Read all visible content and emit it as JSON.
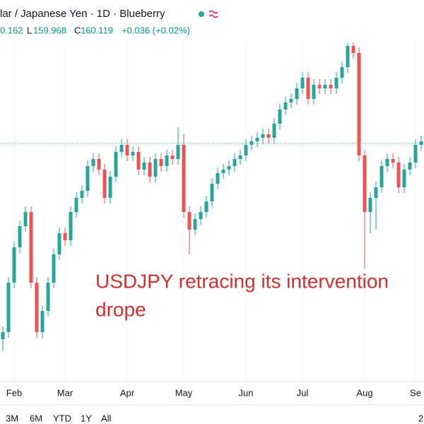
{
  "header": {
    "title": "lar / Japanese Yen · 1D · Blueberry",
    "quote": [
      "0.162",
      "L",
      "159.968",
      "C",
      "160.119",
      "+0.036 (+0.02%)"
    ]
  },
  "chart_data": {
    "type": "candlestick",
    "annotation": [
      "USDJPY retracing its intervention",
      "drope"
    ],
    "categories": [
      null,
      null,
      "Feb",
      null,
      null,
      null,
      null,
      null,
      null,
      null,
      null,
      "Mar",
      null,
      null,
      null,
      null,
      null,
      null,
      null,
      null,
      null,
      null,
      "Apr",
      null,
      null,
      null,
      null,
      null,
      null,
      null,
      null,
      null,
      "May",
      null,
      null,
      null,
      null,
      null,
      null,
      null,
      null,
      null,
      null,
      "Jun",
      null,
      null,
      null,
      null,
      null,
      null,
      null,
      null,
      null,
      "Jul",
      null,
      null,
      null,
      null,
      null,
      null,
      null,
      null,
      null,
      null,
      "Aug",
      null,
      null,
      null,
      null,
      null,
      null,
      null,
      null,
      "Se",
      null
    ],
    "open": [
      141.0,
      141.5,
      145.0,
      147.5,
      149.0,
      150.0,
      145.0,
      141.5,
      143.0,
      145.0,
      147.0,
      148.5,
      148.0,
      150.0,
      151.0,
      151.5,
      153.25,
      153.75,
      153.0,
      151.0,
      152.5,
      154.25,
      154.75,
      154.0,
      154.25,
      153.0,
      153.5,
      152.5,
      153.75,
      153.25,
      154.0,
      153.75,
      154.75,
      150.0,
      148.75,
      149.5,
      150.0,
      150.75,
      152.0,
      152.75,
      153.0,
      153.25,
      153.75,
      154.0,
      154.75,
      155.0,
      155.25,
      155.5,
      155.25,
      156.25,
      157.25,
      157.75,
      158.0,
      158.75,
      159.5,
      158.0,
      159.0,
      158.75,
      159.0,
      158.75,
      159.5,
      160.25,
      161.75,
      161.25,
      154.0,
      150.0,
      151.0,
      151.75,
      153.25,
      153.75,
      153.5,
      151.75,
      153.0,
      153.5,
      154.75
    ],
    "high": [
      141.9,
      145.4,
      147.9,
      149.4,
      150.4,
      150.4,
      145.4,
      143.4,
      145.4,
      147.4,
      148.9,
      148.9,
      150.4,
      151.4,
      151.9,
      153.65,
      154.15,
      154.15,
      153.4,
      152.9,
      154.65,
      155.15,
      155.15,
      154.65,
      154.65,
      153.9,
      153.9,
      154.15,
      154.15,
      154.4,
      154.4,
      156.0,
      155.5,
      150.4,
      149.9,
      150.4,
      151.15,
      152.4,
      153.15,
      153.4,
      153.65,
      154.15,
      154.4,
      155.15,
      155.4,
      155.65,
      155.9,
      155.9,
      156.65,
      157.65,
      158.15,
      158.4,
      159.15,
      159.9,
      159.9,
      159.4,
      159.4,
      159.4,
      159.4,
      159.9,
      160.65,
      161.95,
      162.0,
      161.65,
      154.4,
      151.4,
      152.15,
      153.65,
      154.15,
      154.15,
      153.9,
      153.4,
      153.9,
      155.15,
      155.4
    ],
    "low": [
      140.15,
      141.1,
      144.6,
      147.1,
      148.6,
      144.6,
      141.1,
      141.1,
      142.6,
      144.6,
      146.6,
      147.6,
      147.6,
      149.6,
      150.6,
      151.1,
      152.85,
      152.6,
      150.6,
      150.6,
      152.1,
      153.85,
      153.6,
      153.6,
      152.6,
      152.6,
      152.1,
      152.1,
      152.85,
      152.85,
      153.35,
      153.35,
      149.6,
      147.0,
      148.35,
      149.1,
      149.6,
      150.35,
      151.6,
      152.35,
      152.6,
      152.85,
      153.35,
      153.6,
      154.35,
      154.6,
      154.85,
      154.85,
      154.85,
      155.85,
      156.85,
      157.35,
      157.6,
      158.35,
      157.6,
      157.6,
      158.35,
      158.35,
      158.35,
      158.35,
      159.1,
      159.85,
      160.85,
      153.6,
      146.0,
      148.5,
      148.75,
      151.35,
      152.85,
      153.1,
      151.35,
      151.35,
      152.6,
      153.1,
      154.35
    ],
    "close": [
      141.5,
      145.0,
      147.5,
      149.0,
      150.0,
      145.0,
      141.5,
      143.0,
      145.0,
      147.0,
      148.5,
      148.0,
      150.0,
      151.0,
      151.5,
      153.25,
      153.75,
      153.0,
      151.0,
      152.5,
      154.25,
      154.75,
      154.0,
      154.25,
      153.0,
      153.5,
      152.5,
      153.75,
      153.25,
      154.0,
      153.75,
      154.75,
      150.0,
      148.75,
      149.5,
      150.0,
      150.75,
      152.0,
      152.75,
      153.0,
      153.25,
      153.75,
      154.0,
      154.75,
      155.0,
      155.25,
      155.5,
      155.25,
      156.25,
      157.25,
      157.75,
      158.0,
      158.75,
      159.5,
      158.0,
      159.0,
      158.75,
      159.0,
      158.75,
      159.5,
      160.25,
      161.75,
      161.25,
      154.0,
      150.0,
      151.0,
      151.75,
      153.25,
      153.75,
      153.5,
      151.75,
      153.0,
      153.5,
      154.75,
      155.0
    ],
    "up_color": "#26a69a",
    "down_color": "#ef5350",
    "annotation_color": "#d32f2f",
    "price_line": 154.85,
    "ylim": [
      138,
      165
    ]
  },
  "range_buttons": [
    "3M",
    "6M",
    "YTD",
    "1Y",
    "All"
  ],
  "corner_label": "2"
}
